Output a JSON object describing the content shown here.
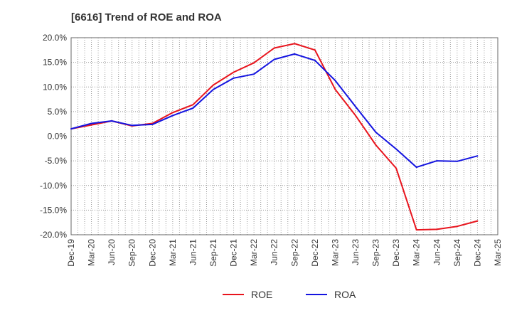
{
  "chart_data": {
    "type": "line",
    "title": "[6616]  Trend of ROE and ROA",
    "xlabel": "",
    "ylabel": "",
    "x_tick_labels": [
      "Dec-19",
      "Mar-20",
      "Jun-20",
      "Sep-20",
      "Dec-20",
      "Mar-21",
      "Jun-21",
      "Sep-21",
      "Dec-21",
      "Mar-22",
      "Jun-22",
      "Sep-22",
      "Dec-22",
      "Mar-23",
      "Jun-23",
      "Sep-23",
      "Dec-23",
      "Mar-24",
      "Jun-24",
      "Sep-24",
      "Dec-24",
      "Mar-25"
    ],
    "y_tick_labels": [
      "20.0%",
      "15.0%",
      "10.0%",
      "5.0%",
      "0.0%",
      "-5.0%",
      "-10.0%",
      "-15.0%",
      "-20.0%"
    ],
    "ylim": [
      -20,
      20
    ],
    "y_unit": "%",
    "grid": true,
    "legend_position": "bottom-center",
    "series": [
      {
        "name": "ROE",
        "color": "#e8141d",
        "x": [
          "Dec-19",
          "Mar-20",
          "Jun-20",
          "Sep-20",
          "Dec-20",
          "Mar-21",
          "Jun-21",
          "Sep-21",
          "Dec-21",
          "Mar-22",
          "Jun-22",
          "Sep-22",
          "Dec-22",
          "Mar-23",
          "Jun-23",
          "Sep-23",
          "Dec-23",
          "Mar-24",
          "Jun-24",
          "Sep-24",
          "Dec-24"
        ],
        "values": [
          1.5,
          2.3,
          3.1,
          2.1,
          2.6,
          4.8,
          6.4,
          10.4,
          13.0,
          14.9,
          17.9,
          18.8,
          17.5,
          9.5,
          4.2,
          -1.8,
          -6.5,
          -19.0,
          -18.9,
          -18.3,
          -17.2
        ]
      },
      {
        "name": "ROA",
        "color": "#1414e0",
        "x": [
          "Dec-19",
          "Mar-20",
          "Jun-20",
          "Sep-20",
          "Dec-20",
          "Mar-21",
          "Jun-21",
          "Sep-21",
          "Dec-21",
          "Mar-22",
          "Jun-22",
          "Sep-22",
          "Dec-22",
          "Mar-23",
          "Jun-23",
          "Sep-23",
          "Dec-23",
          "Mar-24",
          "Jun-24",
          "Sep-24",
          "Dec-24"
        ],
        "values": [
          1.5,
          2.6,
          3.1,
          2.2,
          2.4,
          4.2,
          5.7,
          9.5,
          11.8,
          12.6,
          15.6,
          16.7,
          15.4,
          11.3,
          6.0,
          0.8,
          -2.6,
          -6.3,
          -5.0,
          -5.1,
          -4.0
        ]
      }
    ]
  }
}
